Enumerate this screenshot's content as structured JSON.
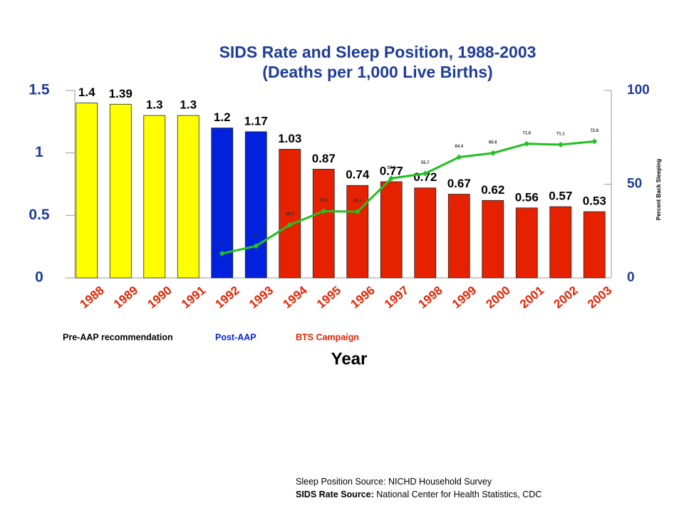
{
  "chart_data": {
    "type": "bar",
    "title": "SIDS Rate and Sleep Position, 1988-2003",
    "subtitle": "(Deaths per 1,000 Live Births)",
    "x_label": "Year",
    "y2_label": "Percent Back Sleeping",
    "categories": [
      "1988",
      "1989",
      "1990",
      "1991",
      "1992",
      "1993",
      "1994",
      "1995",
      "1996",
      "1997",
      "1998",
      "1999",
      "2000",
      "2001",
      "2002",
      "2003"
    ],
    "series": [
      {
        "name": "SIDS Rate",
        "type": "bar",
        "colors": [
          "#ffff00",
          "#ffff00",
          "#ffff00",
          "#ffff00",
          "#0022dd",
          "#0022dd",
          "#e62100",
          "#e62100",
          "#e62100",
          "#e62100",
          "#e62100",
          "#e62100",
          "#e62100",
          "#e62100",
          "#e62100",
          "#e62100"
        ],
        "values": [
          1.4,
          1.39,
          1.3,
          1.3,
          1.2,
          1.17,
          1.03,
          0.87,
          0.74,
          0.77,
          0.72,
          0.67,
          0.62,
          0.56,
          0.57,
          0.53
        ]
      },
      {
        "name": "Percent Back Sleeping",
        "type": "line",
        "axis": "y2",
        "color": "#22c022",
        "values": [
          null,
          null,
          null,
          null,
          13,
          17,
          28.3,
          35.6,
          35.3,
          53.1,
          55.7,
          64.4,
          66.6,
          71.6,
          71.1,
          72.8
        ]
      }
    ],
    "ylim": [
      0,
      1.5
    ],
    "yticks": [
      0,
      0.5,
      1,
      1.5
    ],
    "y2lim": [
      0,
      100
    ],
    "y2ticks": [
      0,
      50,
      100
    ],
    "annotations": [
      {
        "text": "Pre-AAP recommendation",
        "color": "#000000"
      },
      {
        "text": "Post-AAP",
        "color": "#0022dd"
      },
      {
        "text": "BTS Campaign",
        "color": "#e62100"
      }
    ],
    "sources": [
      {
        "label": "",
        "text": "Sleep Position Source:  NICHD Household Survey"
      },
      {
        "label": "SIDS Rate Source:",
        "text": "National Center for Health Statistics, CDC"
      }
    ]
  }
}
